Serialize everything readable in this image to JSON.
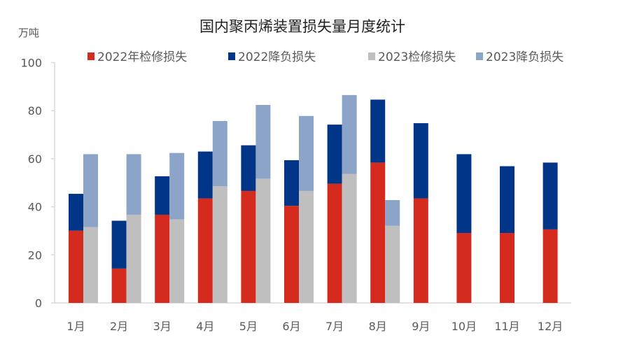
{
  "chart_data": {
    "type": "bar",
    "title": "国内聚丙烯装置损失量月度统计",
    "ylabel": "万吨",
    "xlabel": "",
    "ylim": [
      0,
      100
    ],
    "yticks": [
      0,
      20,
      40,
      60,
      80,
      100
    ],
    "grid": false,
    "legend_position": "top",
    "categories": [
      "1月",
      "2月",
      "3月",
      "4月",
      "5月",
      "6月",
      "7月",
      "8月",
      "9月",
      "10月",
      "11月",
      "12月"
    ],
    "stacks": [
      {
        "stack": "2022",
        "series": [
          {
            "name": "2022年检修损失",
            "color": "#d52b1e",
            "values": [
              30.1,
              14.3,
              36.7,
              43.5,
              46.6,
              40.4,
              49.6,
              58.4,
              43.5,
              29.1,
              29.1,
              30.6
            ]
          },
          {
            "name": "2022降负损失",
            "color": "#003587",
            "values": [
              15.3,
              19.9,
              16.0,
              19.5,
              19.0,
              19.0,
              24.6,
              26.2,
              31.3,
              32.8,
              27.8,
              27.8
            ]
          }
        ]
      },
      {
        "stack": "2023",
        "series": [
          {
            "name": "2023检修损失",
            "color": "#bfbfbf",
            "values": [
              31.6,
              36.7,
              34.8,
              48.6,
              51.7,
              46.6,
              53.7,
              32.1,
              null,
              null,
              null,
              null
            ]
          },
          {
            "name": "2023降负损失",
            "color": "#8ca4c8",
            "values": [
              30.3,
              25.2,
              27.6,
              27.1,
              30.7,
              31.2,
              32.8,
              10.7,
              null,
              null,
              null,
              null
            ]
          }
        ]
      }
    ]
  }
}
